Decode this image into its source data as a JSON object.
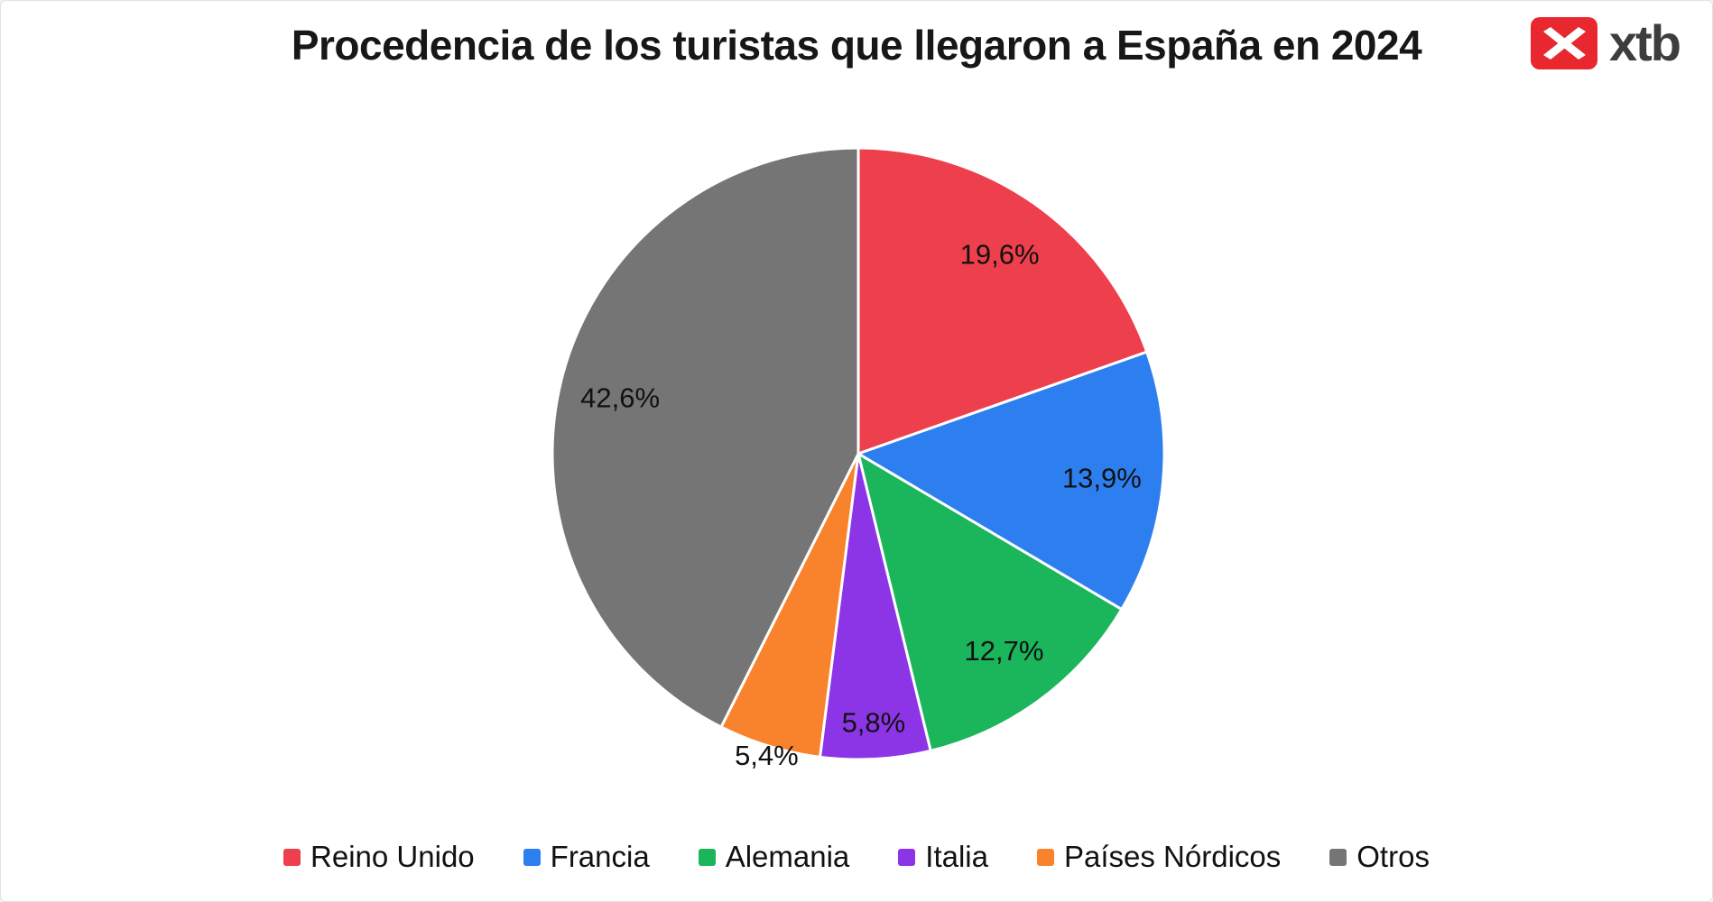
{
  "logo": {
    "text": "xtb",
    "brand_color": "#e8272f",
    "icon": "xtb-x-mark"
  },
  "chart_data": {
    "type": "pie",
    "title": "Procedencia de los turistas que llegaron a España en 2024",
    "slices": [
      {
        "label": "Reino Unido",
        "value": 19.6,
        "display": "19,6%",
        "color": "#ee3f4d"
      },
      {
        "label": "Francia",
        "value": 13.9,
        "display": "13,9%",
        "color": "#2d7ff0"
      },
      {
        "label": "Alemania",
        "value": 12.7,
        "display": "12,7%",
        "color": "#1bb55c"
      },
      {
        "label": "Italia",
        "value": 5.8,
        "display": "5,8%",
        "color": "#8c35e6"
      },
      {
        "label": "Países Nórdicos",
        "value": 5.4,
        "display": "5,4%",
        "color": "#f9822d"
      },
      {
        "label": "Otros",
        "value": 42.6,
        "display": "42,6%",
        "color": "#757575"
      }
    ],
    "start_angle_deg": 0,
    "direction": "clockwise",
    "legend_position": "bottom",
    "label_radius_factors": [
      0.8,
      0.8,
      0.8,
      0.88,
      1.03,
      0.8
    ],
    "slice_border_color": "#ffffff",
    "background": "#ffffff",
    "text_color": "#111111"
  }
}
